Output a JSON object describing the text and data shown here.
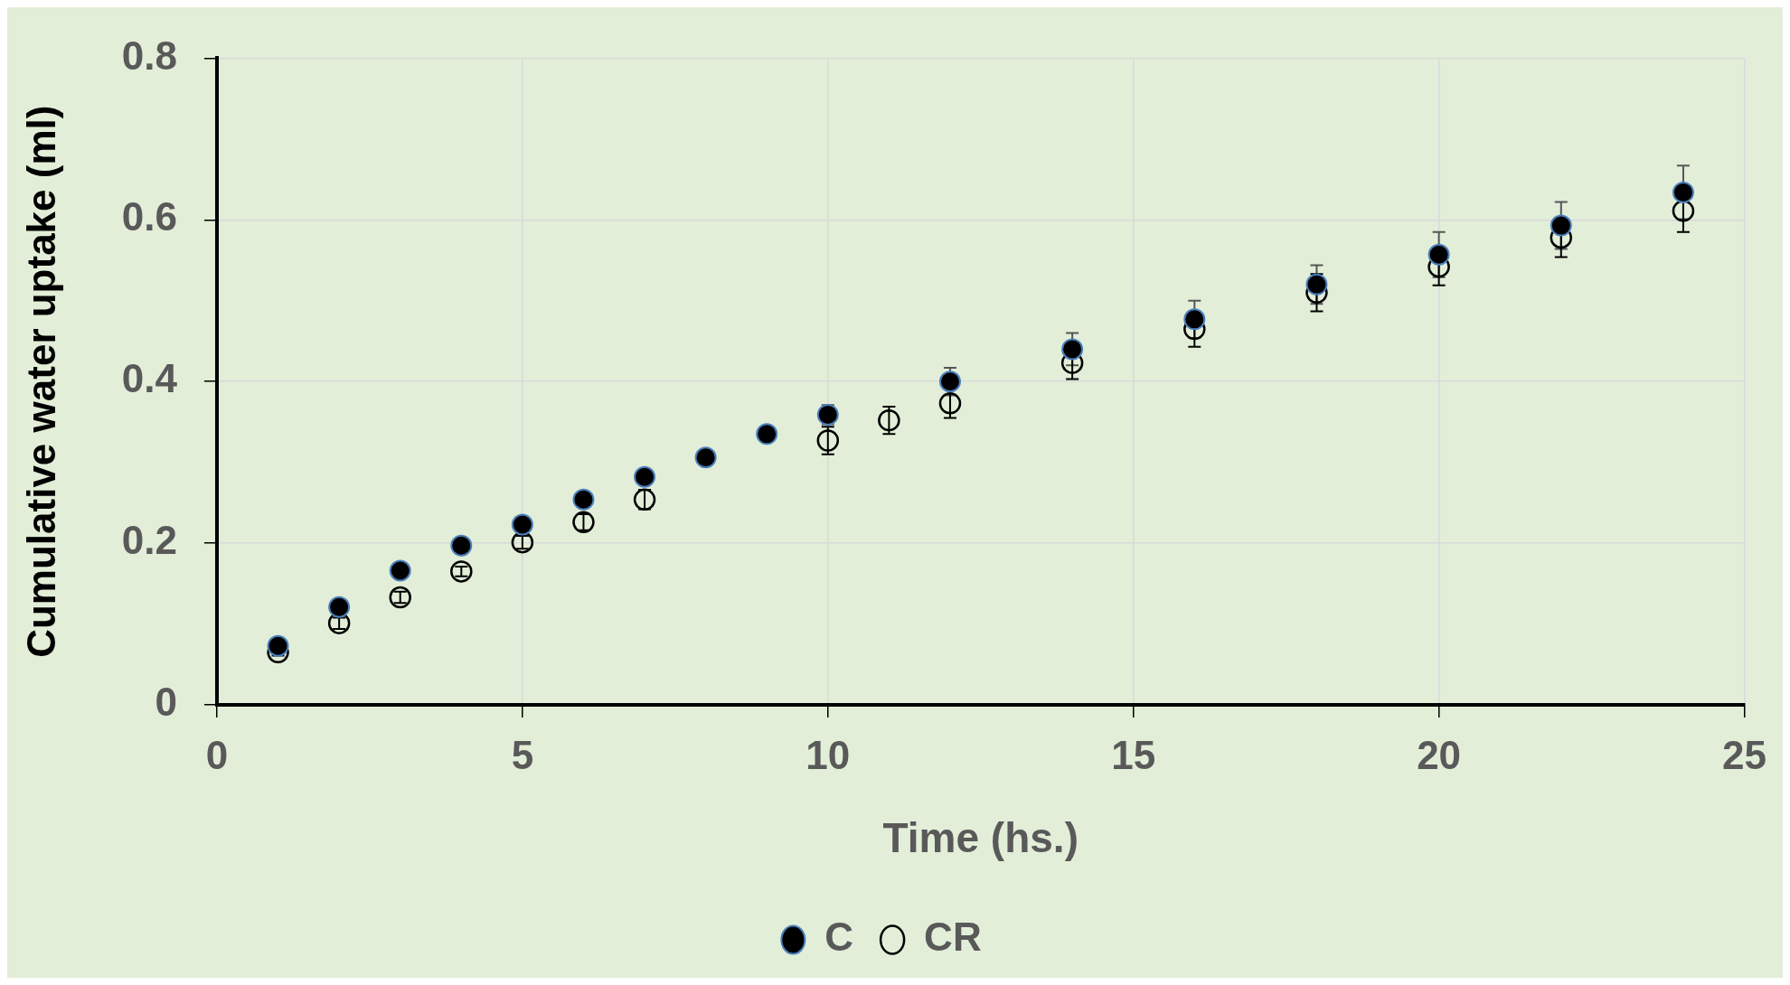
{
  "chart_data": {
    "type": "scatter",
    "xlabel": "Time (hs.)",
    "ylabel": "Cumulative water uptake (ml)",
    "xlim": [
      0,
      25
    ],
    "xticks": [
      0,
      5,
      10,
      15,
      20,
      25
    ],
    "ylim": [
      0,
      0.8
    ],
    "yticks": [
      0,
      0.2,
      0.4,
      0.6,
      0.8
    ],
    "grid": true,
    "legend": "bottom",
    "marker": "circle",
    "series": [
      {
        "name": "C",
        "color": "#000000",
        "x": [
          1,
          2,
          3,
          4,
          5,
          6,
          7,
          8,
          9,
          10,
          12,
          14,
          16,
          18,
          20,
          22,
          24
        ],
        "values": [
          0.073,
          0.121,
          0.166,
          0.197,
          0.223,
          0.254,
          0.282,
          0.306,
          0.335,
          0.359,
          0.4,
          0.44,
          0.477,
          0.52,
          0.557,
          0.593,
          0.634
        ],
        "errors": [
          null,
          null,
          null,
          null,
          null,
          null,
          null,
          null,
          null,
          0.012,
          0.017,
          0.02,
          0.023,
          0.024,
          0.028,
          0.029,
          0.033
        ]
      },
      {
        "name": "CR",
        "color": "#000000",
        "x": [
          1,
          2,
          3,
          4,
          5,
          6,
          7,
          10,
          11,
          12,
          14,
          16,
          18,
          20,
          22,
          24
        ],
        "values": [
          0.065,
          0.101,
          0.133,
          0.165,
          0.201,
          0.226,
          0.254,
          0.327,
          0.352,
          0.373,
          0.423,
          0.465,
          0.51,
          0.542,
          0.578,
          0.611
        ],
        "errors": [
          0.004,
          0.007,
          0.007,
          0.006,
          0.008,
          0.01,
          0.012,
          0.017,
          0.017,
          0.018,
          0.02,
          0.022,
          0.023,
          0.023,
          0.024,
          0.026
        ]
      }
    ]
  }
}
